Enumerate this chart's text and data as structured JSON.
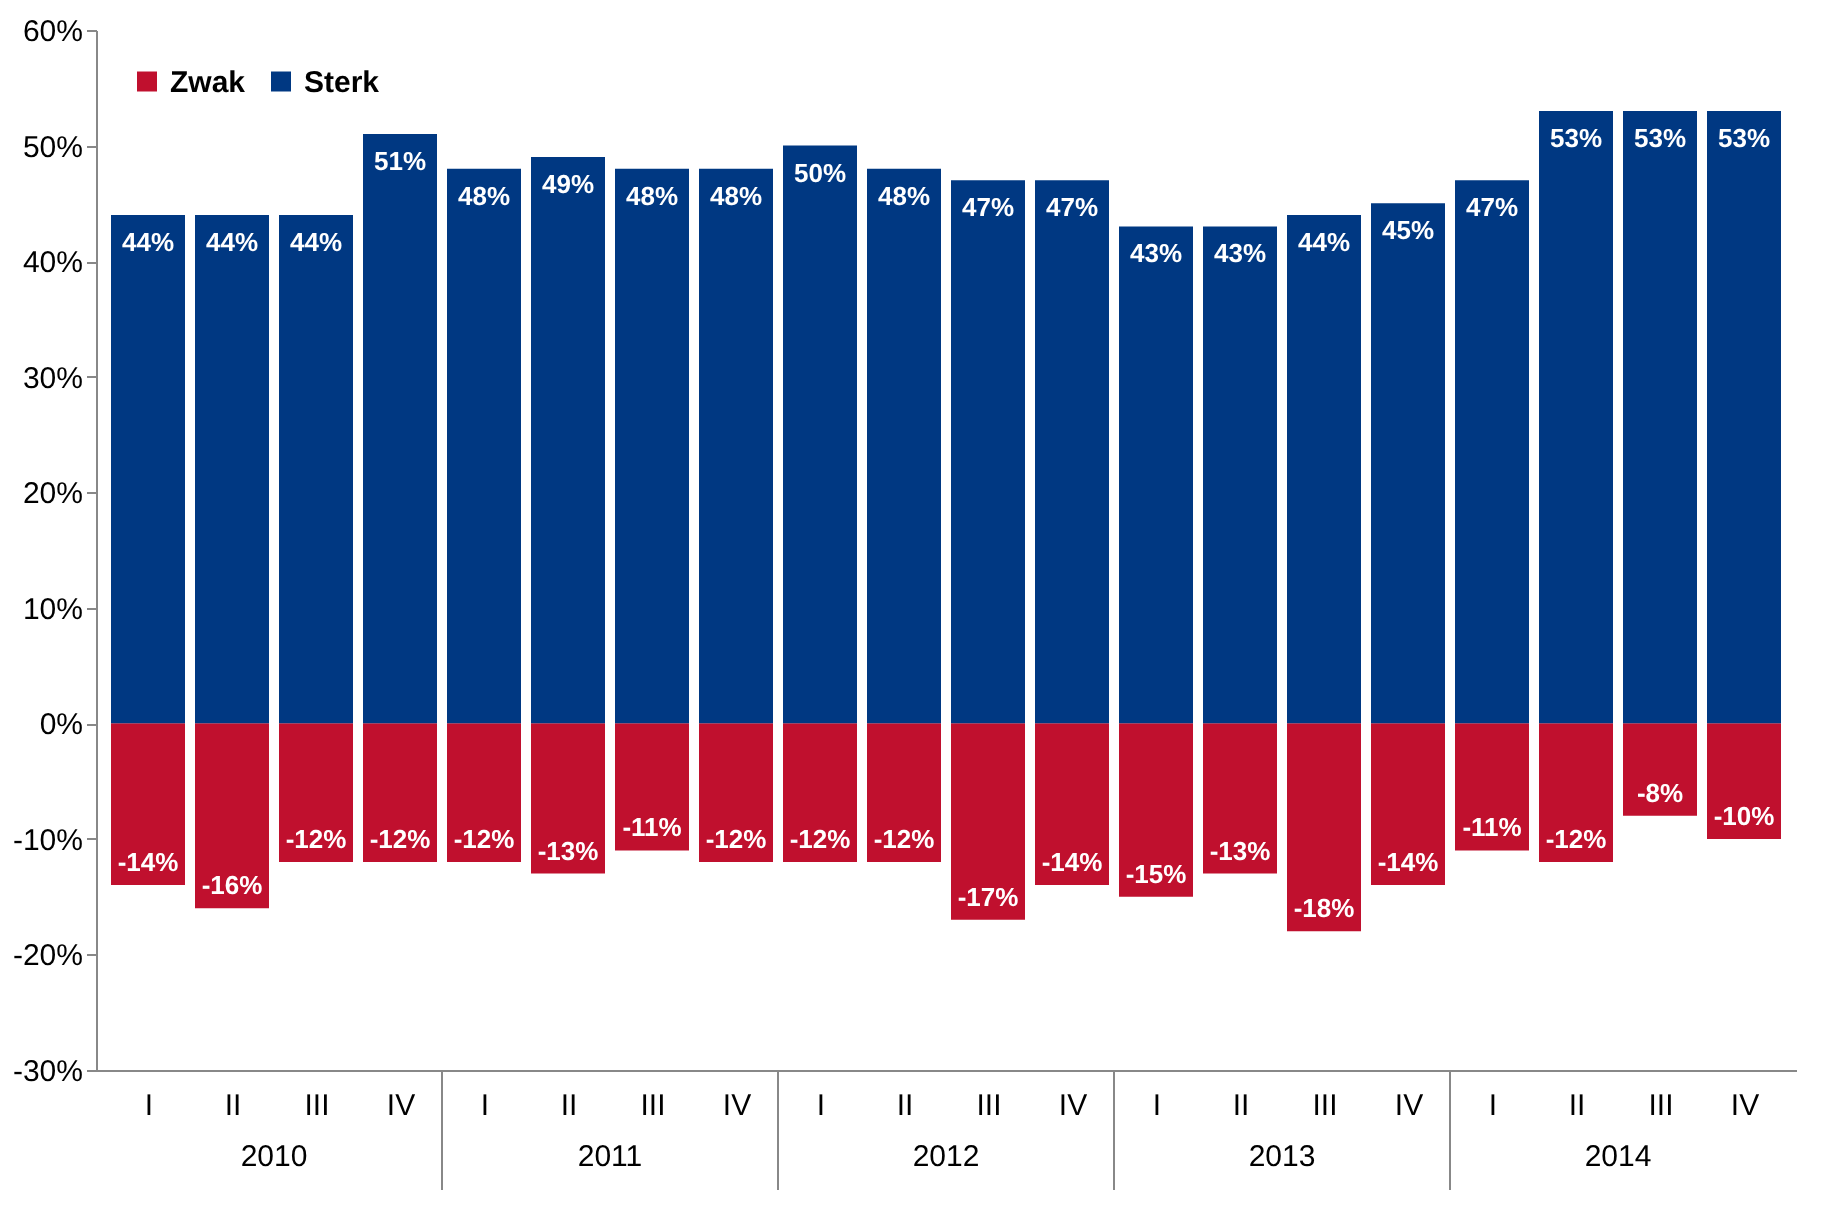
{
  "chart_data": {
    "type": "bar",
    "categories": [
      "I",
      "II",
      "III",
      "IV",
      "I",
      "II",
      "III",
      "IV",
      "I",
      "II",
      "III",
      "IV",
      "I",
      "II",
      "III",
      "IV",
      "I",
      "II",
      "III",
      "IV"
    ],
    "series": [
      {
        "name": "Zwak",
        "color": "#c0102e",
        "values": [
          -14,
          -16,
          -12,
          -12,
          -12,
          -13,
          -11,
          -12,
          -12,
          -12,
          -17,
          -14,
          -15,
          -13,
          -18,
          -14,
          -11,
          -12,
          -8,
          -10
        ],
        "value_labels": [
          "-14%",
          "-16%",
          "-12%",
          "-12%",
          "-12%",
          "-13%",
          "-11%",
          "-12%",
          "-12%",
          "-12%",
          "-17%",
          "-14%",
          "-15%",
          "-13%",
          "-18%",
          "-14%",
          "-11%",
          "-12%",
          "-8%",
          "-10%"
        ]
      },
      {
        "name": "Sterk",
        "color": "#003882",
        "values": [
          44,
          44,
          44,
          51,
          48,
          49,
          48,
          48,
          50,
          48,
          47,
          47,
          43,
          43,
          44,
          45,
          47,
          53,
          53,
          53
        ],
        "value_labels": [
          "44%",
          "44%",
          "44%",
          "51%",
          "48%",
          "49%",
          "48%",
          "48%",
          "50%",
          "48%",
          "47%",
          "47%",
          "43%",
          "43%",
          "44%",
          "45%",
          "47%",
          "53%",
          "53%",
          "53%"
        ]
      }
    ],
    "annotations": [
      "2010",
      "2011",
      "2012",
      "2013",
      "2014"
    ],
    "ylim": [
      -30,
      60
    ],
    "yticks": [
      {
        "value": -30,
        "label": "-30%"
      },
      {
        "value": -20,
        "label": "-20%"
      },
      {
        "value": -10,
        "label": "-10%"
      },
      {
        "value": 0,
        "label": "0%"
      },
      {
        "value": 10,
        "label": "10%"
      },
      {
        "value": 20,
        "label": "20%"
      },
      {
        "value": 30,
        "label": "30%"
      },
      {
        "value": 40,
        "label": "40%"
      },
      {
        "value": 50,
        "label": "50%"
      },
      {
        "value": 60,
        "label": "60%"
      }
    ],
    "grid": false,
    "stacked": true,
    "legend": "top left"
  }
}
